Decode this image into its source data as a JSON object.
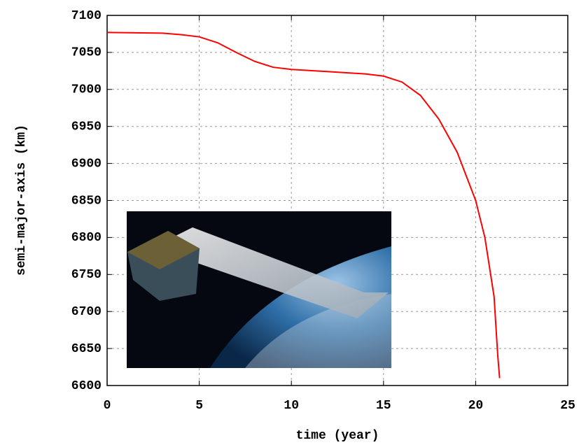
{
  "chart_data": {
    "type": "line",
    "x_label": "time (year)",
    "y_label": "semi-major-axis (km)",
    "x": [
      0,
      3,
      4,
      5,
      6,
      7,
      8,
      9,
      10,
      12,
      14,
      15,
      16,
      17,
      18,
      19,
      20,
      20.5,
      21,
      21.2,
      21.3
    ],
    "series": [
      {
        "color": "#ff0000",
        "values": [
          7077,
          7076,
          7074,
          7071,
          7063,
          7050,
          7038,
          7030,
          7027,
          7024,
          7021,
          7018,
          7010,
          6992,
          6960,
          6915,
          6850,
          6800,
          6720,
          6640,
          6610
        ]
      }
    ],
    "xlim": [
      0,
      25
    ],
    "xticks": [
      0,
      5,
      10,
      15,
      20,
      25
    ],
    "ylim": [
      6600,
      7100
    ],
    "yticks": [
      6600,
      6650,
      6700,
      6750,
      6800,
      6850,
      6900,
      6950,
      7000,
      7050,
      7100
    ],
    "grid": true
  }
}
